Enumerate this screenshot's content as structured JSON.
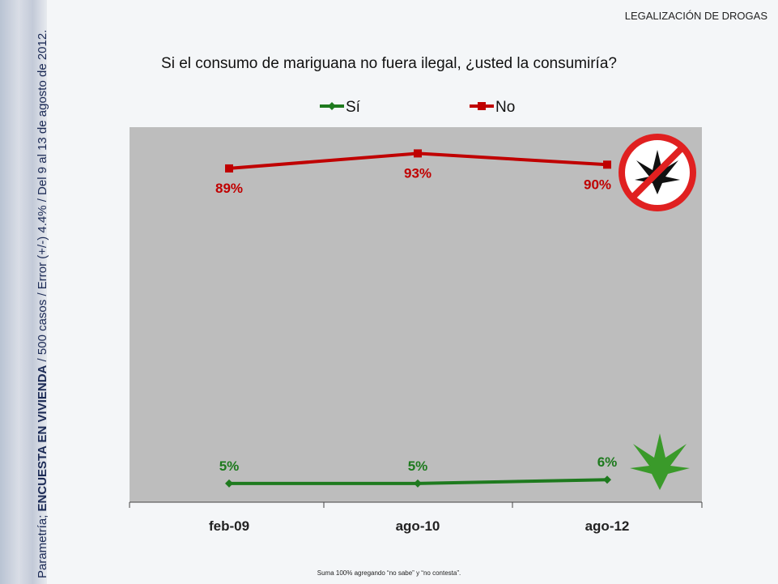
{
  "header": {
    "topic": "LEGALIZACIÓN DE DROGAS"
  },
  "side_note": {
    "prefix": "Parametría; ",
    "bold": "ENCUESTA EN VIVIENDA",
    "rest": " / 500 casos / Error (+/-) 4.4% / Del 9 al 13 de agosto de 2012."
  },
  "footnote": "Suma 100%  agregando “no sabe” y “no contesta”.",
  "chart_data": {
    "type": "line",
    "title": "Si el consumo de mariguana no fuera ilegal, ¿usted la consumiría?",
    "categories": [
      "feb-09",
      "ago-10",
      "ago-12"
    ],
    "ylim": [
      0,
      100
    ],
    "legend_position": "top",
    "series": [
      {
        "name": "Sí",
        "values": [
          5,
          5,
          6
        ],
        "labels": [
          "5%",
          "5%",
          "6%"
        ],
        "color": "#1e7a1e"
      },
      {
        "name": "No",
        "values": [
          89,
          93,
          90
        ],
        "labels": [
          "89%",
          "93%",
          "90%"
        ],
        "color": "#c00000"
      }
    ]
  }
}
